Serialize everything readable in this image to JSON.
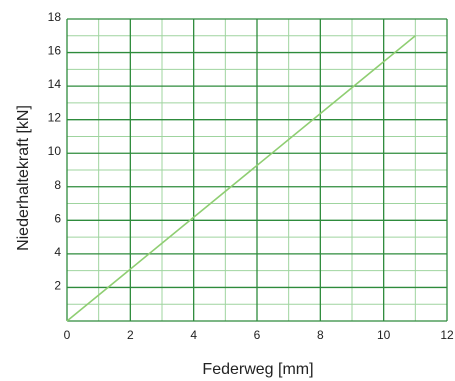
{
  "chart_data": {
    "type": "line",
    "xlabel": "Federweg [mm]",
    "ylabel": "Niederhaltekraft [kN]",
    "xlim": [
      0,
      12
    ],
    "ylim": [
      0,
      18
    ],
    "xticks": [
      "0",
      "2",
      "4",
      "6",
      "8",
      "10",
      "12"
    ],
    "yticks": [
      "2",
      "4",
      "6",
      "8",
      "10",
      "12",
      "14",
      "16",
      "18"
    ],
    "grid": true,
    "series": [
      {
        "x": [
          0,
          11
        ],
        "y": [
          0,
          17
        ]
      }
    ],
    "colors": {
      "grid_major": "#2e8b3c",
      "grid_minor": "#9fd49f",
      "line": "#8fce72",
      "text": "#222222"
    }
  }
}
